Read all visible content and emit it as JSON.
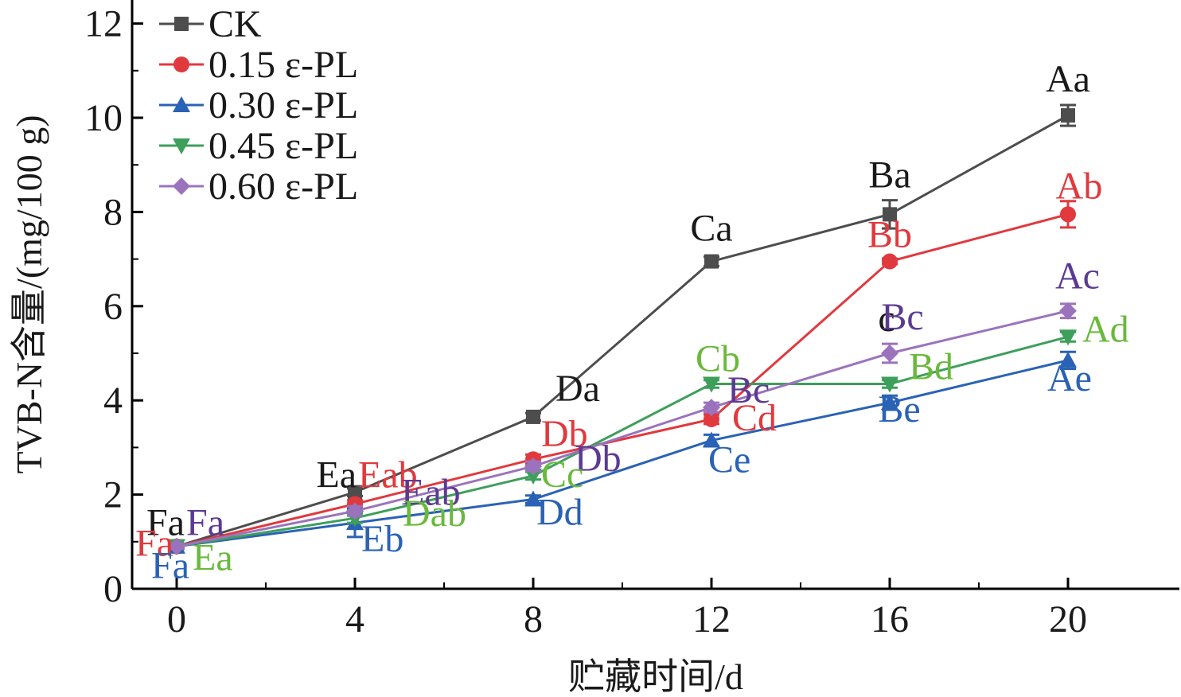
{
  "chart_data": {
    "type": "line",
    "xlabel": "贮藏时间/d",
    "ylabel": "TVB-N含量/(mg/100 g)",
    "x": [
      0,
      4,
      8,
      12,
      16,
      20
    ],
    "x_ticks": [
      "0",
      "4",
      "8",
      "12",
      "16",
      "20"
    ],
    "y_ticks": [
      "0",
      "2",
      "4",
      "6",
      "8",
      "10",
      "12"
    ],
    "xlim": [
      -1,
      22.5
    ],
    "ylim": [
      0,
      12.5
    ],
    "grid": false,
    "legend_position": "top-left",
    "series": [
      {
        "name": "CK",
        "color": "#4d4d4d",
        "marker": "square",
        "values": [
          0.9,
          2.05,
          3.65,
          6.95,
          7.95,
          10.05
        ],
        "errors": [
          0.05,
          0.08,
          0.08,
          0.1,
          0.3,
          0.22
        ],
        "labels": [
          "Fa",
          "Ea",
          "Da",
          "Ca",
          "Ba",
          "Aa"
        ]
      },
      {
        "name": "0.15 ε-PL",
        "color": "#e0393e",
        "marker": "circle",
        "values": [
          0.9,
          1.8,
          2.75,
          3.6,
          6.95,
          7.95
        ],
        "errors": [
          0.05,
          0.08,
          0.1,
          0.1,
          0.06,
          0.28
        ],
        "labels": [
          "Fa",
          "Eab",
          "Db",
          "Cd",
          "Bb",
          "Ab"
        ]
      },
      {
        "name": "0.30 ε-PL",
        "color": "#2a62b5",
        "marker": "triangle-up",
        "values": [
          0.9,
          1.4,
          1.9,
          3.15,
          3.95,
          4.85
        ],
        "errors": [
          0.05,
          0.3,
          0.08,
          0.12,
          0.15,
          0.18
        ],
        "labels": [
          "Fa",
          "Eb",
          "Dd",
          "Ce",
          "Be",
          "Ae"
        ]
      },
      {
        "name": "0.45 ε-PL",
        "color": "#3d9f5a",
        "marker": "triangle-down",
        "values": [
          0.9,
          1.5,
          2.4,
          4.35,
          4.35,
          5.35
        ],
        "errors": [
          0.05,
          0.1,
          0.08,
          0.08,
          0.08,
          0.1
        ],
        "labels": [
          "Ea",
          "Dab",
          "Cc",
          "Cb",
          "Bd",
          "Ad"
        ]
      },
      {
        "name": "0.60 ε-PL",
        "color": "#9b73bd",
        "marker": "diamond",
        "values": [
          0.9,
          1.65,
          2.6,
          3.85,
          5.0,
          5.9
        ],
        "errors": [
          0.05,
          0.1,
          0.1,
          0.1,
          0.2,
          0.15
        ],
        "labels": [
          "Fa",
          "Eab",
          "Db",
          "Bc",
          "Bc",
          "Ac"
        ]
      }
    ],
    "annotation_colors": {
      "black": "#1a1a1a",
      "red": "#e0393e",
      "blue": "#2a62b5",
      "green": "#6ab93c",
      "purple": "#5b3a93"
    },
    "annotations": [
      {
        "text": "Fa",
        "x": 0,
        "y": 0.9,
        "color": "black",
        "anchor": "end",
        "dx": 10,
        "dy": -14
      },
      {
        "text": "Fa",
        "x": 0,
        "y": 0.9,
        "color": "purple",
        "anchor": "start",
        "dx": 12,
        "dy": -14
      },
      {
        "text": "Fa",
        "x": 0,
        "y": 0.9,
        "color": "red",
        "anchor": "end",
        "dx": -4,
        "dy": 12
      },
      {
        "text": "Fa",
        "x": 0,
        "y": 0.9,
        "color": "blue",
        "anchor": "end",
        "dx": 16,
        "dy": 40
      },
      {
        "text": "Ea",
        "x": 0,
        "y": 0.9,
        "color": "green",
        "anchor": "start",
        "dx": 20,
        "dy": 30
      },
      {
        "text": "Ea",
        "x": 4,
        "y": 2.05,
        "color": "black",
        "anchor": "end",
        "dx": 2,
        "dy": -6
      },
      {
        "text": "Eab",
        "x": 4,
        "y": 2.05,
        "color": "red",
        "anchor": "start",
        "dx": 4,
        "dy": -6
      },
      {
        "text": "Eab",
        "x": 4,
        "y": 1.65,
        "color": "purple",
        "anchor": "start",
        "dx": 58,
        "dy": -8
      },
      {
        "text": "Dab",
        "x": 4,
        "y": 1.5,
        "color": "green",
        "anchor": "start",
        "dx": 60,
        "dy": 10
      },
      {
        "text": "Eb",
        "x": 4,
        "y": 1.4,
        "color": "blue",
        "anchor": "start",
        "dx": 8,
        "dy": 36
      },
      {
        "text": "Da",
        "x": 8,
        "y": 3.65,
        "color": "black",
        "anchor": "start",
        "dx": 28,
        "dy": -20
      },
      {
        "text": "Db",
        "x": 8,
        "y": 2.75,
        "color": "red",
        "anchor": "start",
        "dx": 10,
        "dy": -16
      },
      {
        "text": "Db",
        "x": 8,
        "y": 2.6,
        "color": "purple",
        "anchor": "start",
        "dx": 52,
        "dy": 6
      },
      {
        "text": "Cc",
        "x": 8,
        "y": 2.4,
        "color": "green",
        "anchor": "start",
        "dx": 10,
        "dy": 14
      },
      {
        "text": "Dd",
        "x": 8,
        "y": 1.9,
        "color": "blue",
        "anchor": "start",
        "dx": 4,
        "dy": 32
      },
      {
        "text": "Ca",
        "x": 12,
        "y": 6.95,
        "color": "black",
        "anchor": "middle",
        "dx": 0,
        "dy": -26
      },
      {
        "text": "Cb",
        "x": 12,
        "y": 4.35,
        "color": "green",
        "anchor": "middle",
        "dx": 8,
        "dy": -16
      },
      {
        "text": "Bc",
        "x": 12,
        "y": 3.85,
        "color": "purple",
        "anchor": "start",
        "dx": 20,
        "dy": -6
      },
      {
        "text": "Cd",
        "x": 12,
        "y": 3.6,
        "color": "red",
        "anchor": "start",
        "dx": 26,
        "dy": 14
      },
      {
        "text": "Ce",
        "x": 12,
        "y": 3.15,
        "color": "blue",
        "anchor": "start",
        "dx": -4,
        "dy": 40
      },
      {
        "text": "Ba",
        "x": 16,
        "y": 7.95,
        "color": "black",
        "anchor": "middle",
        "dx": 0,
        "dy": -34
      },
      {
        "text": "Bb",
        "x": 16,
        "y": 6.95,
        "color": "red",
        "anchor": "middle",
        "dx": 0,
        "dy": -18
      },
      {
        "text": "c",
        "x": 16,
        "y": 5.0,
        "color": "black",
        "anchor": "middle",
        "dx": -4,
        "dy": -28
      },
      {
        "text": "Bc",
        "x": 16,
        "y": 5.0,
        "color": "purple",
        "anchor": "middle",
        "dx": 16,
        "dy": -30
      },
      {
        "text": "Bd",
        "x": 16,
        "y": 4.35,
        "color": "green",
        "anchor": "start",
        "dx": 24,
        "dy": -6
      },
      {
        "text": "Be",
        "x": 16,
        "y": 3.95,
        "color": "blue",
        "anchor": "middle",
        "dx": 12,
        "dy": 24
      },
      {
        "text": "Aa",
        "x": 20,
        "y": 10.05,
        "color": "black",
        "anchor": "middle",
        "dx": 0,
        "dy": -30
      },
      {
        "text": "Ab",
        "x": 20,
        "y": 7.95,
        "color": "red",
        "anchor": "middle",
        "dx": 14,
        "dy": -20
      },
      {
        "text": "Ac",
        "x": 20,
        "y": 5.9,
        "color": "purple",
        "anchor": "middle",
        "dx": 12,
        "dy": -28
      },
      {
        "text": "Ad",
        "x": 20,
        "y": 5.35,
        "color": "green",
        "anchor": "start",
        "dx": 18,
        "dy": 6
      },
      {
        "text": "Ae",
        "x": 20,
        "y": 4.85,
        "color": "blue",
        "anchor": "middle",
        "dx": 2,
        "dy": 38
      }
    ]
  }
}
